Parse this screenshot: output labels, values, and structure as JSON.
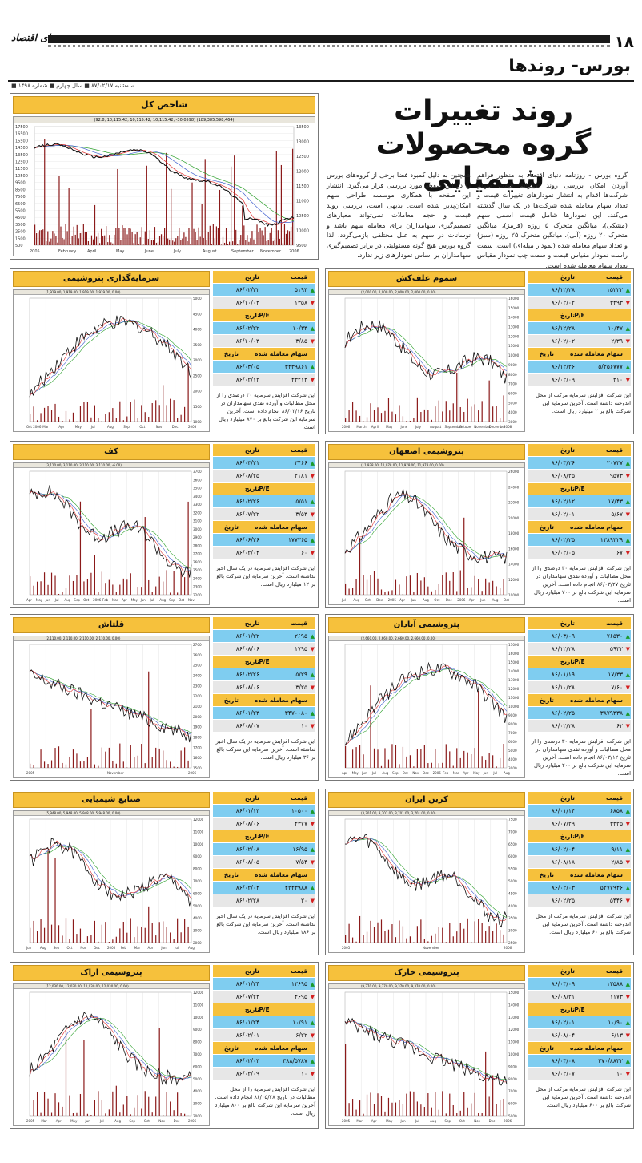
{
  "header": {
    "page_number": "۱۸",
    "logo": "دنیای اقتصاد",
    "section": "بورس- روندها",
    "dateline": "■ سه‌شنبه ۸۷/۰۲/۱۷ ■ سال چهارم ■ شماره ۱۴۹۸"
  },
  "article": {
    "title_line1": "روند تغییرات",
    "title_line2": "گروه محصولات شیمیایی",
    "col1": "گروه بورس - روزنامه دنیای اقتصاد به منظور فراهم آوردن امکان بررسی روند تغییرات قیمت سهام شرکت‌ها اقدام به انتشار نمودارهای تغییرات قیمت و تعداد سهام معامله شده شرکت‌ها در یک سال گذشته می‌کند. این نمودارها شامل قیمت اسمی سهم (مشکی)، میانگین متحرک ۵ روزه (قرمز)، میانگین متحرک ۲۰ روزه (آبی)، میانگین متحرک ۲۵ روزه (سبز) و تعداد سهام معامله شده (نمودار میله‌ای) است. سمت راست نمودار مقیاس قیمت و سمت چپ نمودار مقیاس تعداد سهام معامله شده است.",
    "col2": "همچنین به دلیل کمبود فضا برخی از گروه‌های بورس را در این صفحه مورد بررسی قرار می‌گیرد. انتشار این صفحه با همکاری موسسه طراحی سهم امکان‌پذیر شده است. بدیهی است، بررسی روند قیمت و حجم معاملات نمی‌تواند معیارهای تصمیم‌گیری سهامداران برای معامله سهم باشد و نوسانات در سهم به علل مختلفی بازمی‌گردد. لذا گروه بورس هیچ گونه مسئولیتی در برابر تصمیم‌گیری سهامداران بر اساس نمودارهای زیر ندارد."
  },
  "index_chart": {
    "title": "شاخص کل",
    "info": "(92.8, 10,115.42, 10,115.42, 10,115.42, -30.0598)   (189,385,598,464)",
    "y_left": [
      "17500",
      "16500",
      "15500",
      "14500",
      "13500",
      "12500",
      "11500",
      "10500",
      "9500",
      "8500",
      "7500",
      "6500",
      "5500",
      "4500",
      "3500",
      "2500",
      "1500",
      "500"
    ],
    "y_right": [
      "13500",
      "13000",
      "12500",
      "12000",
      "11500",
      "11000",
      "10500",
      "10000",
      "9500"
    ],
    "x_labels": [
      "2005",
      "February",
      "April",
      "May",
      "June",
      "July",
      "August",
      "September",
      "November",
      "2006"
    ]
  },
  "labels": {
    "price": "قیمت",
    "date": "تاریخ",
    "pe": "P/E",
    "volume": "سهام معامله شده"
  },
  "companies": [
    {
      "title": "سرمایه‌گذاری پتروشیمی",
      "info": "(1,919.00, 1,919.00, 1,919.00, 1,919.00, 0.00)",
      "rows": [
        [
          "۵۱۹۳",
          "۸۶/۰۲/۲۲"
        ],
        [
          "۱۳۵۸",
          "۸۶/۱۰/۰۳"
        ],
        [
          "۱۰/۳۳",
          "۸۶/۰۲/۲۲"
        ],
        [
          "۳/۸۵",
          "۸۶/۱۰/۰۳"
        ],
        [
          "۳۴۳۹۸۶۱",
          "۸۶/۰۳/۰۵"
        ],
        [
          "۴۳۲۱۳",
          "۸۶/۰۲/۱۲"
        ]
      ],
      "note": "این شرکت افزایش سرمایه ۳۰ درصدی را از محل مطالبات و آورده نقدی سهامداران در تاریخ ۸۶/۰۳/۱۶ انجام داده است. آخرین سرمایه این شرکت بالغ بر ۸۷۰ میلیارد ریال است.",
      "y_right": [
        "5000",
        "4500",
        "4000",
        "3500",
        "3000",
        "2500",
        "2000",
        "1500",
        "1000"
      ],
      "x_labels": [
        "Oct 2006",
        "Mar",
        "Apr",
        "May",
        "Jul",
        "Aug",
        "Sep",
        "Oct",
        "Nov",
        "Dec",
        "2008"
      ]
    },
    {
      "title": "سموم علف‌کش",
      "info": "(2,000.00, 2,000.00, 2,000.00, 2,000.00, 0.00)",
      "rows": [
        [
          "۱۵۲۲۲",
          "۸۶/۱۲/۲۸"
        ],
        [
          "۳۴۹۳",
          "۸۶/۰۲/۰۲"
        ],
        [
          "۱۰/۴۷",
          "۸۶/۱۲/۲۸"
        ],
        [
          "۲/۳۹",
          "۸۶/۰۲/۰۲"
        ],
        [
          "۵/۲۵۶۷۷۷",
          "۸۶/۱۲/۲۶"
        ],
        [
          "۳۱۰",
          "۸۶/۰۲/۰۹"
        ]
      ],
      "note": "این شرکت افزایش سرمایه مرکب از محل اندوخته داشته است. آخرین سرمایه این شرکت بالغ بر ۲ میلیارد ریال است.",
      "y_right": [
        "16000",
        "15000",
        "14000",
        "13000",
        "12000",
        "11000",
        "10000",
        "9000",
        "8000",
        "7000",
        "6000",
        "5000",
        "4000",
        "3000"
      ],
      "x_labels": [
        "2006",
        "March",
        "April",
        "May",
        "June",
        "July",
        "August",
        "September",
        "October",
        "November",
        "December",
        "2008"
      ]
    },
    {
      "title": "کف",
      "info": "(3,110.00, 3,110.00, 3,110.00, 3,110.00, -6.00)",
      "rows": [
        [
          "۳۴۶۶",
          "۸۶/۰۳/۲۱"
        ],
        [
          "۲۱۸۱",
          "۸۶/۰۸/۲۵"
        ],
        [
          "۵/۵۱",
          "۸۶/۰۲/۲۶"
        ],
        [
          "۳/۵۳",
          "۸۶/۰۷/۲۲"
        ],
        [
          "۱۷۷۳۶۵",
          "۸۶/۰۶/۲۶"
        ],
        [
          "۶۰",
          "۸۶/۰۲/۰۴"
        ]
      ],
      "note": "این شرکت افزایش سرمایه در یک سال اخیر نداشته است. آخرین سرمایه این شرکت بالغ بر ۱۲ میلیارد ریال است.",
      "y_right": [
        "3700",
        "3600",
        "3500",
        "3400",
        "3300",
        "3200",
        "3100",
        "3000",
        "2900",
        "2800",
        "2700",
        "2600",
        "2500",
        "2400",
        "2300",
        "2200"
      ],
      "x_labels": [
        "Apr",
        "May",
        "Jun",
        "Jul",
        "Aug",
        "Sep",
        "Oct",
        "2006",
        "Feb",
        "Mar",
        "Apr",
        "May",
        "Jun",
        "Jul",
        "Aug",
        "Sep",
        "Oct",
        "Nov"
      ]
    },
    {
      "title": "پتروشیمی اصفهان",
      "info": "(11,978.00, 11,978.00, 11,978.00, 11,978.00, 0.00)",
      "rows": [
        [
          "۲۰۷۳۷",
          "۸۶/۰۳/۲۶"
        ],
        [
          "۹۵۷۳",
          "۸۶/۰۸/۲۵"
        ],
        [
          "۱۷/۴۳",
          "۸۶/۰۲/۱۲"
        ],
        [
          "۵/۶۷",
          "۸۶/۰۲/۰۱"
        ],
        [
          "۱۳۸۹۳۲۹",
          "۸۶/۰۲/۲۵"
        ],
        [
          "۶۷",
          "۸۶/۰۲/۰۵"
        ]
      ],
      "note": "این شرکت افزایش سرمایه ۳۰ درصدی را از محل مطالبات و آورده نقدی سهامداران در تاریخ ۸۶/۰۳/۲۷ انجام داده است. آخرین سرمایه این شرکت بالغ بر ۷۰۰ میلیارد ریال است.",
      "y_right": [
        "26000",
        "24000",
        "22000",
        "20000",
        "18000",
        "16000",
        "14000",
        "12000",
        "10000"
      ],
      "x_labels": [
        "Jul",
        "Aug",
        "Oct",
        "Dec",
        "2005",
        "Apr",
        "Jun",
        "Aug",
        "Oct",
        "Dec",
        "2006",
        "Apr",
        "Jun",
        "Aug",
        "Oct"
      ]
    },
    {
      "title": "قلتاش",
      "info": "(2,110.00, 2,110.00, 2,110.00, 2,110.00, 0.00)",
      "rows": [
        [
          "۲۶۹۵",
          "۸۶/۰۱/۲۲"
        ],
        [
          "۱۷۹۵",
          "۸۶/۰۸/۰۶"
        ],
        [
          "۵/۲۹",
          "۸۶/۰۲/۲۶"
        ],
        [
          "۳/۲۵",
          "۸۶/۰۸/۰۶"
        ],
        [
          "۳۴۷۰۰۸۰",
          "۸۶/۰۱/۲۳"
        ],
        [
          "۱۰",
          "۸۶/۰۸/۰۷"
        ]
      ],
      "note": "این شرکت افزایش سرمایه در یک سال اخیر نداشته است. آخرین سرمایه این شرکت بالغ بر ۳۶ میلیارد ریال است.",
      "y_right": [
        "2700",
        "2600",
        "2500",
        "2400",
        "2300",
        "2200",
        "2100",
        "2000",
        "1900",
        "1800",
        "1700",
        "1600",
        "1500"
      ],
      "x_labels": [
        "2005",
        "November",
        "2006"
      ]
    },
    {
      "title": "پتروشیمی آبادان",
      "info": "(2,660.00, 2,660.00, 2,660.00, 2,660.00, 0.00)",
      "rows": [
        [
          "۷۶۵۳۰",
          "۸۶/۰۳/۰۹"
        ],
        [
          "۵۹۳۲",
          "۸۶/۱۲/۲۸"
        ],
        [
          "۱۷/۳۳",
          "۸۶/۰۱/۱۹"
        ],
        [
          "۷/۶۰",
          "۸۶/۱۰/۲۸"
        ],
        [
          "۳۸۷۹۳۳۸",
          "۸۶/۰۲/۲۵"
        ],
        [
          "۶۲",
          "۸۶/۰۲/۲۸"
        ]
      ],
      "note": "این شرکت افزایش سرمایه ۳۰ درصدی را از محل مطالبات و آورده نقدی سهامداران در تاریخ ۸۶/۰۳/۱۲ انجام داده است. آخرین سرمایه این شرکت بالغ بر ۲۰۰ میلیارد ریال است.",
      "y_right": [
        "17000",
        "16000",
        "15000",
        "14000",
        "13000",
        "12000",
        "11000",
        "10000",
        "9000",
        "8000",
        "7000",
        "6000",
        "5000",
        "4000",
        "3000"
      ],
      "x_labels": [
        "Apr",
        "May",
        "Jun",
        "Jul",
        "Aug",
        "Sep",
        "Oct",
        "Nov",
        "Dec",
        "2006",
        "Feb",
        "Mar",
        "Apr",
        "May",
        "Jun",
        "Jul",
        "Aug"
      ]
    },
    {
      "title": "صنایع شیمیایی",
      "info": "(5,948.00, 5,948.00, 5,948.00, 5,948.00, 0.00)",
      "rows": [
        [
          "۱۰۵۰۰",
          "۸۶/۰۱/۱۳"
        ],
        [
          "۴۳۷۷",
          "۸۶/۰۸/۰۶"
        ],
        [
          "۱۶/۹۵",
          "۸۶/۰۲/۰۸"
        ],
        [
          "۷/۵۴",
          "۸۶/۰۸/۰۵"
        ],
        [
          "۴۲۴۳۹۸۸",
          "۸۶/۰۲/۰۴"
        ],
        [
          "۲۰",
          "۸۶/۰۲/۲۸"
        ]
      ],
      "note": "این شرکت افزایش سرمایه در یک سال اخیر نداشته است. آخرین سرمایه این شرکت بالغ بر ۱۸۶ میلیارد ریال است.",
      "y_right": [
        "12000",
        "11000",
        "10000",
        "9000",
        "8000",
        "7000",
        "6000",
        "5000",
        "4000",
        "3000",
        "2000"
      ],
      "x_labels": [
        "Jun",
        "Aug",
        "Sep",
        "Oct",
        "Nov",
        "Dec",
        "2005",
        "Feb",
        "Mar",
        "Apr",
        "Jun",
        "Jul",
        "Aug"
      ]
    },
    {
      "title": "کربن ایران",
      "info": "(3,701.00, 3,701.00, 3,701.00, 3,701.00, 0.00)",
      "rows": [
        [
          "۶۸۵۸",
          "۸۶/۰۱/۱۴"
        ],
        [
          "۳۳۲۵",
          "۸۶/۰۷/۲۹"
        ],
        [
          "۹/۱۱",
          "۸۶/۰۲/۰۴"
        ],
        [
          "۲/۸۵",
          "۸۶/۰۸/۱۸"
        ],
        [
          "۵۲۷۷۹۴۶",
          "۸۶/۰۲/۰۳"
        ],
        [
          "۵۴۴۶",
          "۸۶/۰۲/۲۵"
        ]
      ],
      "note": "این شرکت افزایش سرمایه مرکب از محل اندوخته داشته است. آخرین سرمایه این شرکت بالغ بر ۶۰ میلیارد ریال است.",
      "y_right": [
        "7500",
        "7000",
        "6500",
        "6000",
        "5500",
        "5000",
        "4500",
        "4000",
        "3500",
        "3000",
        "2500"
      ],
      "x_labels": [
        "2005",
        "November",
        "2006"
      ]
    },
    {
      "title": "پتروشیمی اراک",
      "info": "(12,030.00, 12,030.00, 12,030.00, 12,030.00, 0.00)",
      "rows": [
        [
          "۱۳۶۹۵",
          "۸۶/۰۱/۲۴"
        ],
        [
          "۴۶۹۵",
          "۸۶/۰۷/۲۳"
        ],
        [
          "۱۰/۹۱",
          "۸۶/۰۱/۲۴"
        ],
        [
          "۶/۲۲",
          "۸۶/۰۲/۰۱"
        ],
        [
          "۳۸۸/۵۷۸۷",
          "۸۶/۰۲/۰۳"
        ],
        [
          "۱۰",
          "۸۶/۰۲/۰۹"
        ]
      ],
      "note": "این شرکت افزایش سرمایه را از محل مطالبات در تاریخ ۸۶/۰۵/۲۸ انجام داده است. آخرین سرمایه این شرکت بالغ بر ۸۰۰ میلیارد ریال است.",
      "y_right": [
        "12000",
        "11000",
        "10000",
        "9000",
        "8000",
        "7000",
        "6000",
        "5000",
        "4000",
        "3000",
        "2000"
      ],
      "x_labels": [
        "2005",
        "Mar",
        "Apr",
        "May",
        "Jun",
        "Jul",
        "Aug",
        "Sep",
        "Oct",
        "Nov",
        "Dec",
        "2006"
      ]
    },
    {
      "title": "پتروشیمی خارک",
      "info": "(9,370.00, 9,370.00, 9,370.00, 9,370.00, 0.00)",
      "rows": [
        [
          "۱۳۵۸۸",
          "۸۶/۰۳/۰۹"
        ],
        [
          "۱۱۷۳",
          "۸۶/۰۸/۲۱"
        ],
        [
          "۱۰/۹۰",
          "۸۶/۰۲/۰۱"
        ],
        [
          "۶/۱۳",
          "۸۶/۰۸/۰۴"
        ],
        [
          "۳۷۰/۸۸۳۲",
          "۸۶/۰۳/۰۸"
        ],
        [
          "۱۰",
          "۸۶/۰۲/۰۷"
        ]
      ],
      "note": "این شرکت افزایش سرمایه مرکب از محل اندوخته داشته است. آخرین سرمایه این شرکت بالغ بر ۶۰۰ میلیارد ریال است.",
      "y_right": [
        "15000",
        "14000",
        "13000",
        "12000",
        "11000",
        "10000",
        "9000",
        "8000",
        "7000",
        "6000",
        "5000"
      ],
      "x_labels": [
        "2005",
        "Mar",
        "Apr",
        "May",
        "Jun",
        "Jul",
        "Aug",
        "Sep",
        "Oct",
        "Nov",
        "Dec",
        "2006"
      ]
    }
  ],
  "colors": {
    "accent": "#f6c13c",
    "blue_row": "#7fcdf0",
    "up": "#1a9a2a",
    "down": "#d42020",
    "volume": "#8b1a1a"
  }
}
